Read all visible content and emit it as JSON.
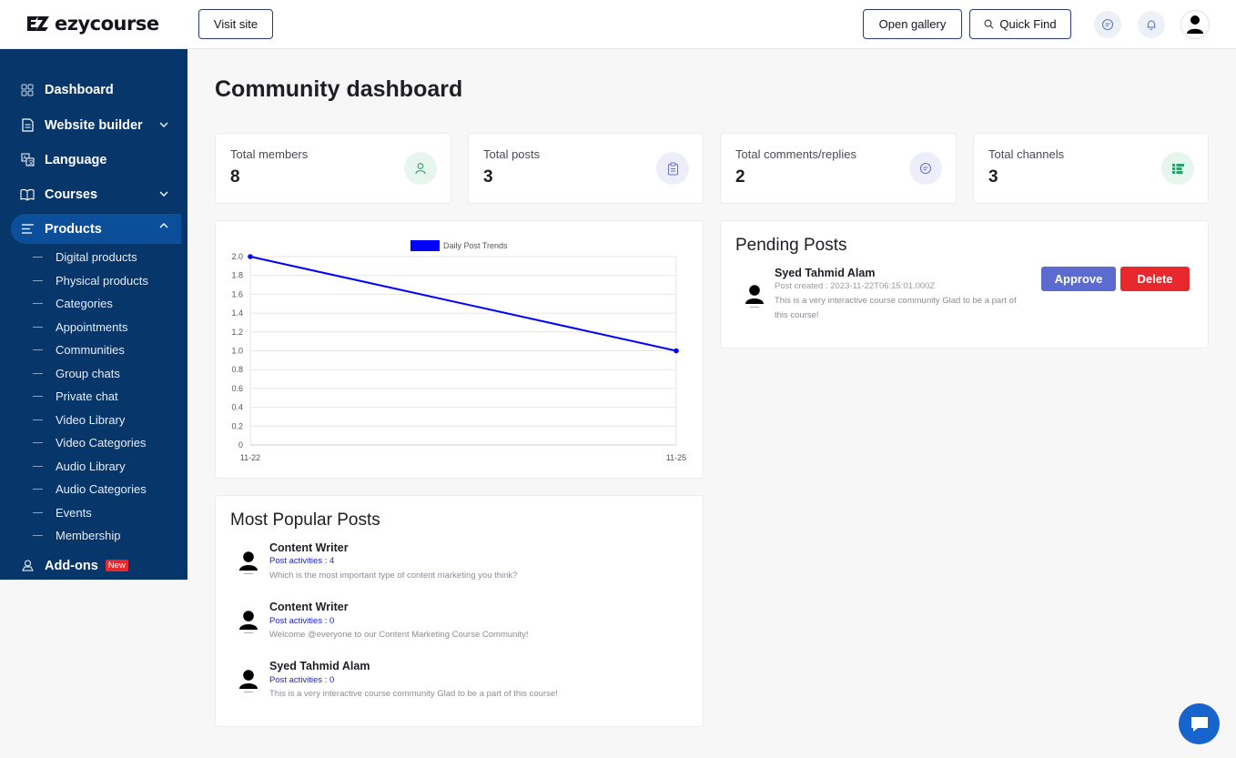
{
  "header": {
    "brand": "ezycourse",
    "visit_site": "Visit site",
    "open_gallery": "Open gallery",
    "quick_find": "Quick Find"
  },
  "sidebar": {
    "main_items": [
      {
        "label": "Dashboard",
        "icon": "grid-icon"
      },
      {
        "label": "Website builder",
        "icon": "document-icon"
      },
      {
        "label": "Language",
        "icon": "translate-icon"
      },
      {
        "label": "Courses",
        "icon": "book-icon"
      },
      {
        "label": "Products",
        "icon": "list-icon"
      },
      {
        "label": "Add-ons",
        "icon": "addons-icon"
      }
    ],
    "addons_badge": "New",
    "product_subitems": [
      "Digital products",
      "Physical products",
      "Categories",
      "Appointments",
      "Communities",
      "Group chats",
      "Private chat",
      "Video Library",
      "Video Categories",
      "Audio Library",
      "Audio Categories",
      "Events",
      "Membership"
    ]
  },
  "page": {
    "title": "Community dashboard"
  },
  "stats": [
    {
      "label": "Total members",
      "value": "8",
      "icon": "user-icon",
      "color": "#e6f6ee"
    },
    {
      "label": "Total posts",
      "value": "3",
      "icon": "clipboard-icon",
      "color": "#eeeefb"
    },
    {
      "label": "Total comments/replies",
      "value": "2",
      "icon": "chat-icon",
      "color": "#eeeefb"
    },
    {
      "label": "Total channels",
      "value": "3",
      "icon": "channels-icon",
      "color": "#e6f6ee"
    }
  ],
  "chart_data": {
    "type": "line",
    "series": [
      {
        "name": "Daily Post Trends",
        "x": [
          "11-22",
          "11-25"
        ],
        "values": [
          2.0,
          1.0
        ],
        "color": "#0000ff"
      }
    ],
    "y_ticks": [
      "0",
      "0.2",
      "0.4",
      "0.6",
      "0.8",
      "1.0",
      "1.2",
      "1.4",
      "1.6",
      "1.8",
      "2.0"
    ],
    "ylim": [
      0,
      2.0
    ],
    "grid": true,
    "legend": "top"
  },
  "pending": {
    "title": "Pending Posts",
    "author": "Syed Tahmid Alam",
    "created": "Post created : 2023-11-22T06:15:01.000Z",
    "text_line1": "This is a very interactive course community Glad to be a part of",
    "text_line2": "this course!",
    "approve": "Approve",
    "delete": "Delete",
    "approve_color": "#5b6bd0",
    "delete_color": "#e8282d"
  },
  "popular": {
    "title": "Most Popular Posts",
    "posts": [
      {
        "author": "Content Writer",
        "activity": "Post activities : 4",
        "text": "Which is the most important type of content marketing you think?"
      },
      {
        "author": "Content Writer",
        "activity": "Post activities : 0",
        "text": "Welcome @everyone to our Content Marketing Course Community!"
      },
      {
        "author": "Syed Tahmid Alam",
        "activity": "Post activities : 0",
        "text": "This is a very interactive course community Glad to be a part of this course!"
      }
    ]
  }
}
